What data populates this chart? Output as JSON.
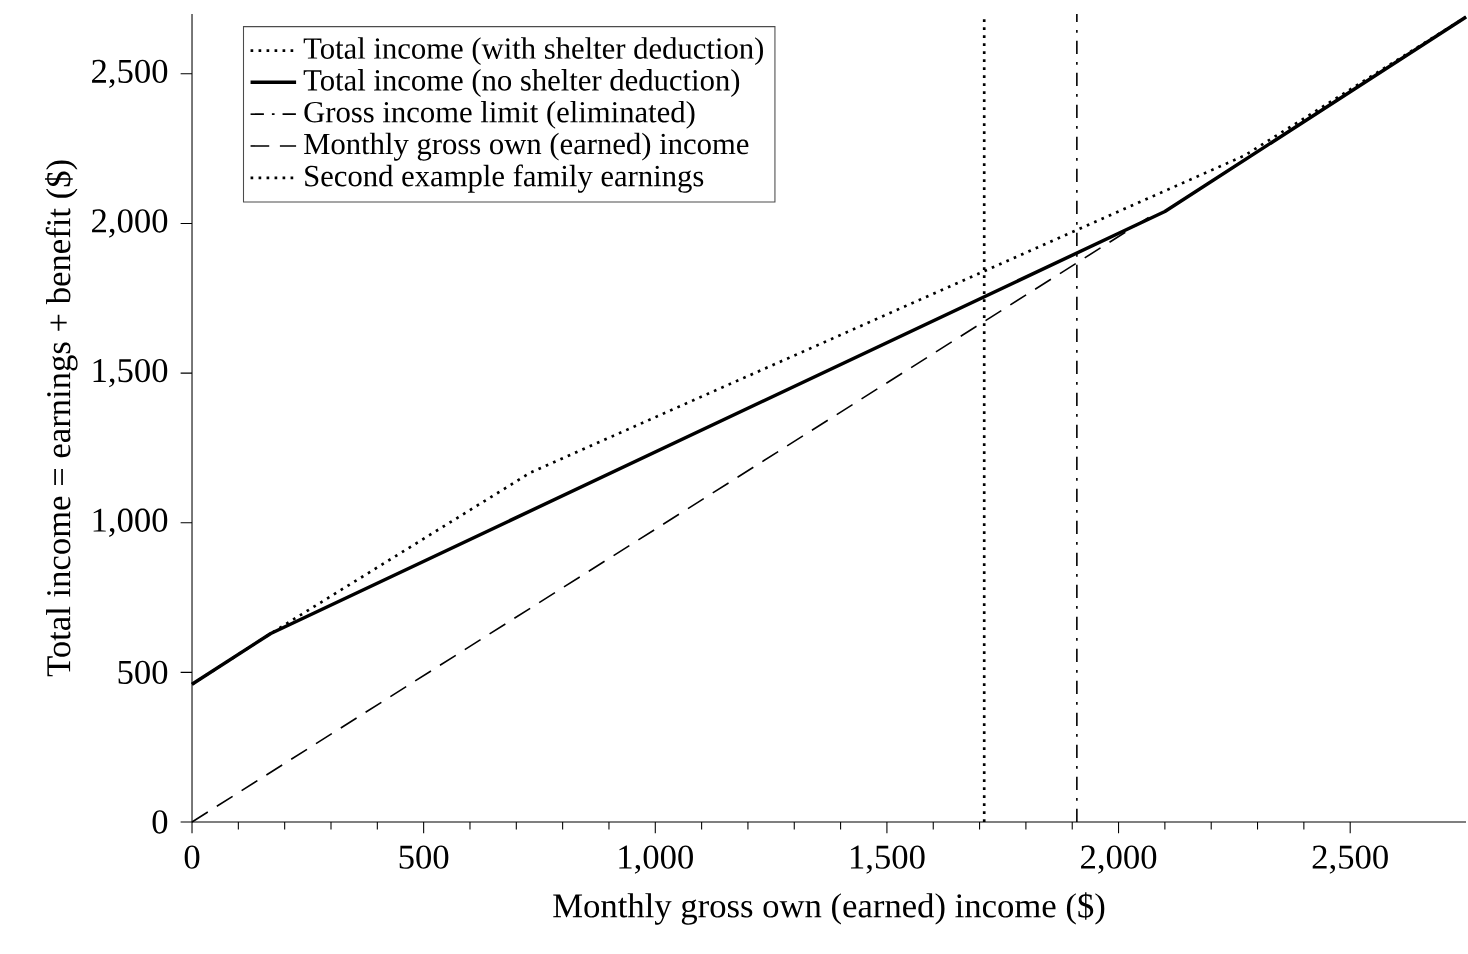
{
  "chart_data": {
    "type": "line",
    "xlabel": "Monthly gross own (earned) income ($)",
    "ylabel": "Total income = earnings + benefit ($)",
    "xlim": [
      0,
      2750
    ],
    "ylim": [
      0,
      2700
    ],
    "xticks": [
      0,
      500,
      {
        "value": 1000,
        "label": "1,000"
      },
      {
        "value": 1500,
        "label": "1,500"
      },
      {
        "value": 2000,
        "label": "2,000"
      },
      {
        "value": 2500,
        "label": "2,500"
      }
    ],
    "yticks": [
      0,
      500,
      {
        "value": 1000,
        "label": "1,000"
      },
      {
        "value": 1500,
        "label": "1,500"
      },
      {
        "value": 2000,
        "label": "2,000"
      },
      {
        "value": 2500,
        "label": "2,500"
      }
    ],
    "legend": "top left",
    "grid": false,
    "series": [
      {
        "name": "Total income (with shelter deduction)",
        "color": "#000000",
        "line_style": "dotted",
        "x": [
          0,
          170,
          730,
          2272,
          2750
        ],
        "values": [
          460,
          630,
          1167,
          2227,
          2690
        ]
      },
      {
        "name": "Total income (no shelter deduction)",
        "color": "#000000",
        "line_style": "solid",
        "x": [
          0,
          170,
          2100,
          2750
        ],
        "values": [
          460,
          630,
          2040,
          2690
        ]
      },
      {
        "name": "Gross income limit (eliminated)",
        "color": "#000000",
        "line_style": "dashdot",
        "x": [
          1910,
          1910
        ],
        "values": [
          0,
          2700
        ]
      },
      {
        "name": "Monthly gross own (earned) income",
        "color": "#000000",
        "line_style": "dashed",
        "x": [
          0,
          2065
        ],
        "values": [
          0,
          2020
        ]
      },
      {
        "name": "Second example family earnings",
        "color": "#000000",
        "line_style": "dotted",
        "x": [
          1710,
          1710
        ],
        "values": [
          0,
          2700
        ]
      }
    ]
  }
}
